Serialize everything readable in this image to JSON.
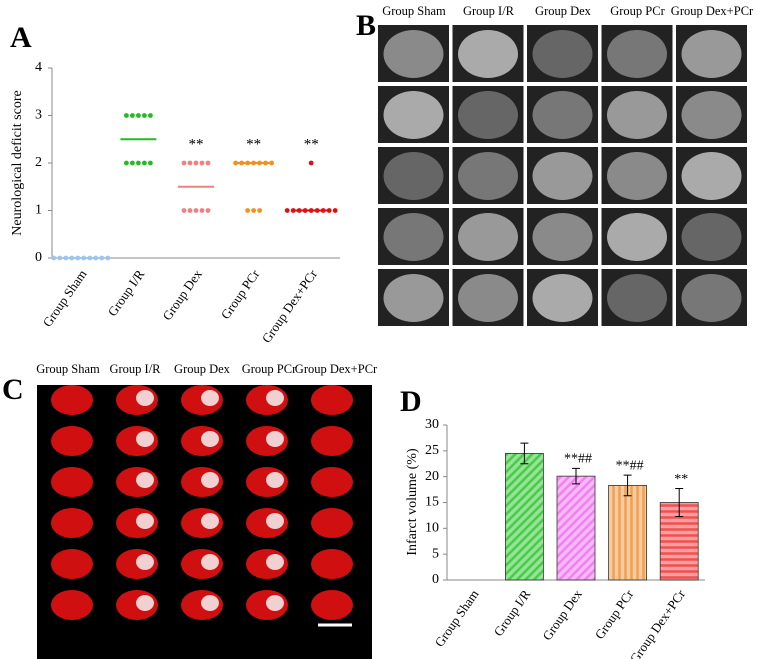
{
  "chart_data": [
    {
      "type": "dot",
      "panel_label": "A",
      "ylabel": "Neurological deficit score",
      "categories": [
        "Group Sham",
        "Group I/R",
        "Group Dex",
        "Group PCr",
        "Group Dex+PCr"
      ],
      "colors": [
        "#9ec5f0",
        "#22bb22",
        "#f08080",
        "#f5901e",
        "#e01010"
      ],
      "points": [
        [
          0,
          0,
          0,
          0,
          0,
          0,
          0,
          0,
          0,
          0
        ],
        [
          3,
          3,
          3,
          3,
          3,
          2,
          2,
          2,
          2,
          2
        ],
        [
          2,
          2,
          2,
          2,
          2,
          1,
          1,
          1,
          1,
          1
        ],
        [
          2,
          2,
          2,
          2,
          2,
          2,
          2,
          1,
          1,
          1
        ],
        [
          2,
          1,
          1,
          1,
          1,
          1,
          1,
          1,
          1,
          1
        ]
      ],
      "center_lines": [
        0,
        2.5,
        1.5,
        2,
        1
      ],
      "annotations": [
        null,
        null,
        "**",
        "**",
        "**"
      ],
      "ylim": [
        0,
        4
      ],
      "yticks": [
        0,
        1,
        2,
        3,
        4
      ]
    },
    {
      "type": "bar",
      "panel_label": "D",
      "ylabel": "Infarct volume (%)",
      "categories": [
        "Group Sham",
        "Group I/R",
        "Group Dex",
        "Group PCr",
        "Group Dex+PCr"
      ],
      "values": [
        0,
        24.5,
        20.1,
        18.3,
        15.0
      ],
      "errors": [
        null,
        2.0,
        1.5,
        2.0,
        2.7
      ],
      "value_labels": [
        null,
        null,
        "**##",
        "**##",
        "**"
      ],
      "colors": [
        "#888888",
        "#44cc44",
        "#f080f0",
        "#f0a050",
        "#f05050"
      ],
      "hatches": [
        null,
        "diagonal",
        "diagonal",
        "vertical",
        "horizontal"
      ],
      "ylim": [
        0,
        30
      ],
      "yticks": [
        0,
        5,
        10,
        15,
        20,
        25,
        30
      ]
    }
  ],
  "panel_B": {
    "label": "B",
    "columns": [
      "Group Sham",
      "Group I/R",
      "Group Dex",
      "Group PCr",
      "Group Dex+PCr"
    ]
  },
  "panel_C": {
    "label": "C",
    "columns": [
      "Group Sham",
      "Group I/R",
      "Group Dex",
      "Group PCr",
      "Group Dex+PCr"
    ]
  }
}
